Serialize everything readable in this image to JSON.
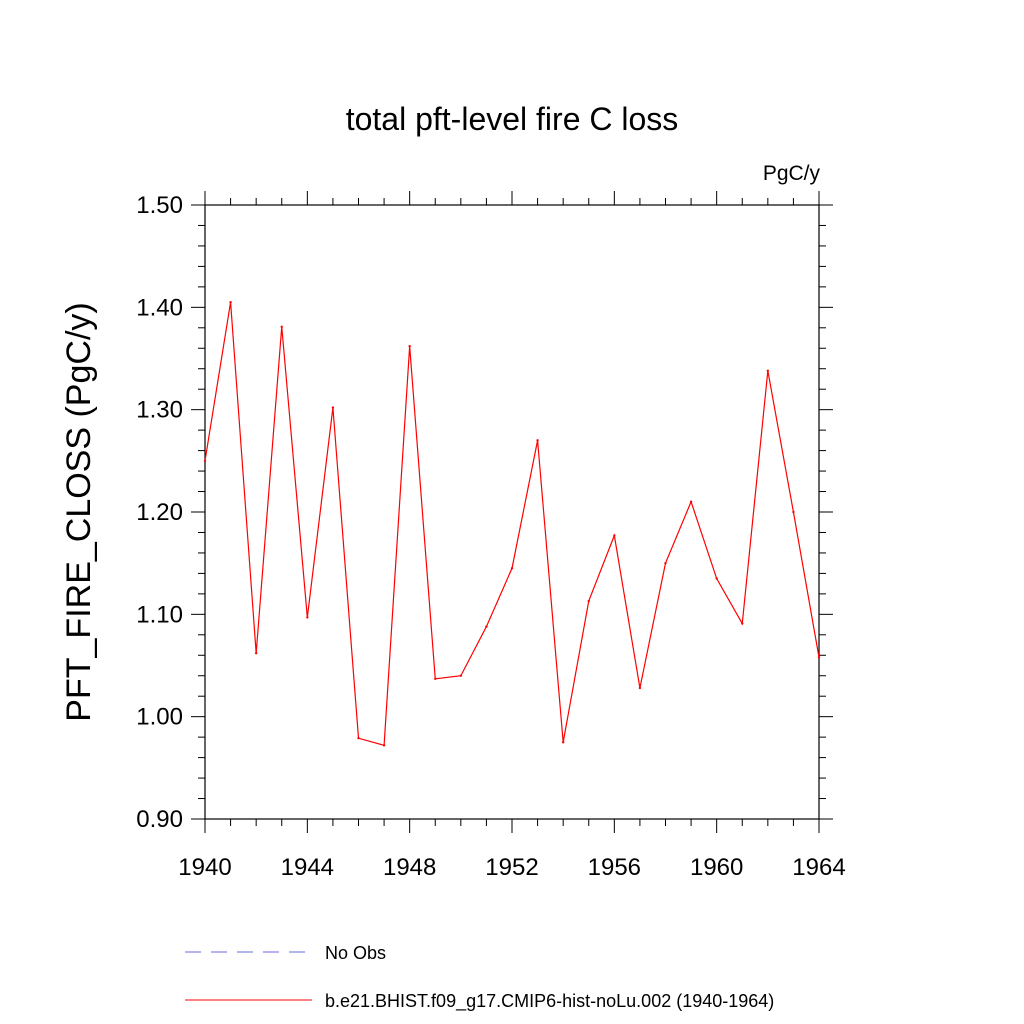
{
  "chart_data": {
    "type": "line",
    "title": "total pft-level fire C loss",
    "units_label": "PgC/y",
    "ylabel": "PFT_FIRE_CLOSS  (PgC/y)",
    "xlabel": "",
    "xlim": [
      1940,
      1964
    ],
    "ylim": [
      0.9,
      1.5
    ],
    "x_ticks": [
      1940,
      1944,
      1948,
      1952,
      1956,
      1960,
      1964
    ],
    "y_ticks": [
      0.9,
      1.0,
      1.1,
      1.2,
      1.3,
      1.4,
      1.5
    ],
    "y_tick_labels": [
      "0.90",
      "1.00",
      "1.10",
      "1.20",
      "1.30",
      "1.40",
      "1.50"
    ],
    "grid": false,
    "legend_position": "bottom",
    "series": [
      {
        "name": "b.e21.BHIST.f09_g17.CMIP6-hist-noLu.002 (1940-1964)",
        "color": "#ff0000",
        "style": "solid",
        "x": [
          1940,
          1941,
          1942,
          1943,
          1944,
          1945,
          1946,
          1947,
          1948,
          1949,
          1950,
          1951,
          1952,
          1953,
          1954,
          1955,
          1956,
          1957,
          1958,
          1959,
          1960,
          1961,
          1962,
          1963,
          1964
        ],
        "values": [
          1.25,
          1.405,
          1.062,
          1.381,
          1.097,
          1.302,
          0.979,
          0.972,
          1.362,
          1.037,
          1.04,
          1.088,
          1.145,
          1.27,
          0.975,
          1.113,
          1.177,
          1.028,
          1.15,
          1.21,
          1.135,
          1.091,
          1.338,
          1.2,
          1.058
        ]
      }
    ],
    "legend": [
      {
        "label": "No Obs",
        "color": "#6a6adf",
        "style": "dashed"
      },
      {
        "label": "b.e21.BHIST.f09_g17.CMIP6-hist-noLu.002 (1940-1964)",
        "color": "#ff0000",
        "style": "solid"
      }
    ]
  }
}
